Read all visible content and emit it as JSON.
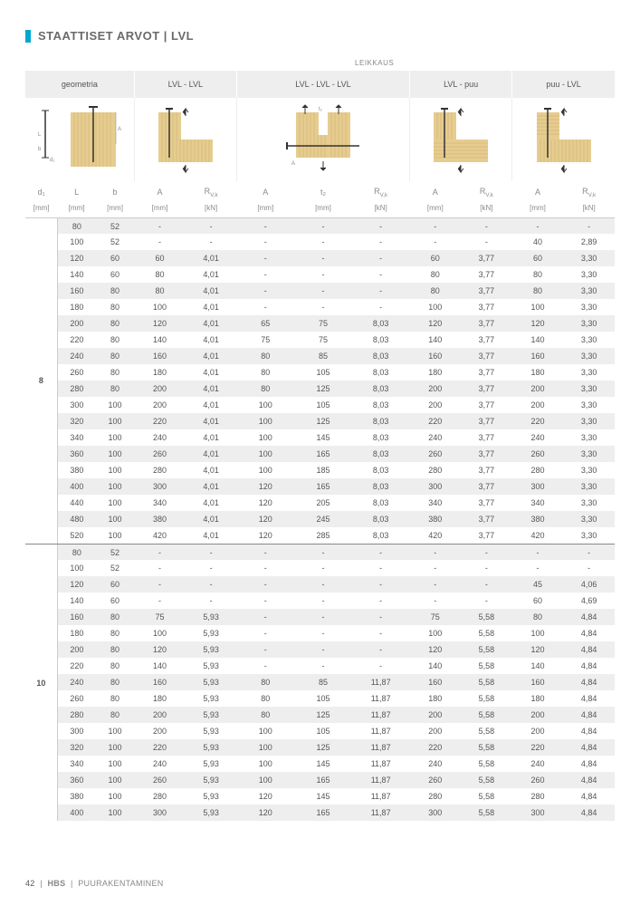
{
  "page_title": "STAATTISET ARVOT | LVL",
  "section_label_top_right": "LEIKKAUS",
  "footer": {
    "page": "42",
    "brand": "HBS",
    "text": "PUURAKENTAMINEN"
  },
  "column_groups": [
    {
      "label": "geometria",
      "span": 3
    },
    {
      "label": "LVL - LVL",
      "span": 2
    },
    {
      "label": "LVL - LVL - LVL",
      "span": 3
    },
    {
      "label": "LVL - puu",
      "span": 2
    },
    {
      "label": "puu - LVL",
      "span": 2
    }
  ],
  "header_labels": [
    "d₁",
    "L",
    "b",
    "A",
    "R_{V,k}",
    "A",
    "t₂",
    "R_{V,k}",
    "A",
    "R_{V,k}",
    "A",
    "R_{V,k}"
  ],
  "header_units": [
    "[mm]",
    "[mm]",
    "[mm]",
    "[mm]",
    "[kN]",
    "[mm]",
    "[mm]",
    "[kN]",
    "[mm]",
    "[kN]",
    "[mm]",
    "[kN]"
  ],
  "col_widths_pct": [
    5,
    6,
    6,
    8,
    8,
    9,
    9,
    9,
    8,
    8,
    8,
    8
  ],
  "colors": {
    "background": "#ffffff",
    "row_stripe": "#eeeeee",
    "header_bg": "#eeeeee",
    "border": "#cccccc",
    "text": "#555555",
    "muted_text": "#888888",
    "accent": "#00a7cf",
    "wood_fill": "#e6cc8f",
    "wood_line": "#c9ad6b"
  },
  "diagram_labels": {
    "L": "L",
    "b": "b",
    "d1": "d₁",
    "A": "A",
    "t2": "t₂"
  },
  "groups": [
    {
      "d1": "8",
      "rows": [
        {
          "L": "80",
          "b": "52",
          "c": [
            "-",
            "-",
            "-",
            "-",
            "-",
            "-",
            "-",
            "-",
            "-"
          ]
        },
        {
          "L": "100",
          "b": "52",
          "c": [
            "-",
            "-",
            "-",
            "-",
            "-",
            "-",
            "-",
            "40",
            "2,89"
          ]
        },
        {
          "L": "120",
          "b": "60",
          "c": [
            "60",
            "4,01",
            "-",
            "-",
            "-",
            "60",
            "3,77",
            "60",
            "3,30"
          ]
        },
        {
          "L": "140",
          "b": "60",
          "c": [
            "80",
            "4,01",
            "-",
            "-",
            "-",
            "80",
            "3,77",
            "80",
            "3,30"
          ]
        },
        {
          "L": "160",
          "b": "80",
          "c": [
            "80",
            "4,01",
            "-",
            "-",
            "-",
            "80",
            "3,77",
            "80",
            "3,30"
          ]
        },
        {
          "L": "180",
          "b": "80",
          "c": [
            "100",
            "4,01",
            "-",
            "-",
            "-",
            "100",
            "3,77",
            "100",
            "3,30"
          ]
        },
        {
          "L": "200",
          "b": "80",
          "c": [
            "120",
            "4,01",
            "65",
            "75",
            "8,03",
            "120",
            "3,77",
            "120",
            "3,30"
          ]
        },
        {
          "L": "220",
          "b": "80",
          "c": [
            "140",
            "4,01",
            "75",
            "75",
            "8,03",
            "140",
            "3,77",
            "140",
            "3,30"
          ]
        },
        {
          "L": "240",
          "b": "80",
          "c": [
            "160",
            "4,01",
            "80",
            "85",
            "8,03",
            "160",
            "3,77",
            "160",
            "3,30"
          ]
        },
        {
          "L": "260",
          "b": "80",
          "c": [
            "180",
            "4,01",
            "80",
            "105",
            "8,03",
            "180",
            "3,77",
            "180",
            "3,30"
          ]
        },
        {
          "L": "280",
          "b": "80",
          "c": [
            "200",
            "4,01",
            "80",
            "125",
            "8,03",
            "200",
            "3,77",
            "200",
            "3,30"
          ]
        },
        {
          "L": "300",
          "b": "100",
          "c": [
            "200",
            "4,01",
            "100",
            "105",
            "8,03",
            "200",
            "3,77",
            "200",
            "3,30"
          ]
        },
        {
          "L": "320",
          "b": "100",
          "c": [
            "220",
            "4,01",
            "100",
            "125",
            "8,03",
            "220",
            "3,77",
            "220",
            "3,30"
          ]
        },
        {
          "L": "340",
          "b": "100",
          "c": [
            "240",
            "4,01",
            "100",
            "145",
            "8,03",
            "240",
            "3,77",
            "240",
            "3,30"
          ]
        },
        {
          "L": "360",
          "b": "100",
          "c": [
            "260",
            "4,01",
            "100",
            "165",
            "8,03",
            "260",
            "3,77",
            "260",
            "3,30"
          ]
        },
        {
          "L": "380",
          "b": "100",
          "c": [
            "280",
            "4,01",
            "100",
            "185",
            "8,03",
            "280",
            "3,77",
            "280",
            "3,30"
          ]
        },
        {
          "L": "400",
          "b": "100",
          "c": [
            "300",
            "4,01",
            "120",
            "165",
            "8,03",
            "300",
            "3,77",
            "300",
            "3,30"
          ]
        },
        {
          "L": "440",
          "b": "100",
          "c": [
            "340",
            "4,01",
            "120",
            "205",
            "8,03",
            "340",
            "3,77",
            "340",
            "3,30"
          ]
        },
        {
          "L": "480",
          "b": "100",
          "c": [
            "380",
            "4,01",
            "120",
            "245",
            "8,03",
            "380",
            "3,77",
            "380",
            "3,30"
          ]
        },
        {
          "L": "520",
          "b": "100",
          "c": [
            "420",
            "4,01",
            "120",
            "285",
            "8,03",
            "420",
            "3,77",
            "420",
            "3,30"
          ]
        }
      ]
    },
    {
      "d1": "10",
      "rows": [
        {
          "L": "80",
          "b": "52",
          "c": [
            "-",
            "-",
            "-",
            "-",
            "-",
            "-",
            "-",
            "-",
            "-"
          ]
        },
        {
          "L": "100",
          "b": "52",
          "c": [
            "-",
            "-",
            "-",
            "-",
            "-",
            "-",
            "-",
            "-",
            "-"
          ]
        },
        {
          "L": "120",
          "b": "60",
          "c": [
            "-",
            "-",
            "-",
            "-",
            "-",
            "-",
            "-",
            "45",
            "4,06"
          ]
        },
        {
          "L": "140",
          "b": "60",
          "c": [
            "-",
            "-",
            "-",
            "-",
            "-",
            "-",
            "-",
            "60",
            "4,69"
          ]
        },
        {
          "L": "160",
          "b": "80",
          "c": [
            "75",
            "5,93",
            "-",
            "-",
            "-",
            "75",
            "5,58",
            "80",
            "4,84"
          ]
        },
        {
          "L": "180",
          "b": "80",
          "c": [
            "100",
            "5,93",
            "-",
            "-",
            "-",
            "100",
            "5,58",
            "100",
            "4,84"
          ]
        },
        {
          "L": "200",
          "b": "80",
          "c": [
            "120",
            "5,93",
            "-",
            "-",
            "-",
            "120",
            "5,58",
            "120",
            "4,84"
          ]
        },
        {
          "L": "220",
          "b": "80",
          "c": [
            "140",
            "5,93",
            "-",
            "-",
            "-",
            "140",
            "5,58",
            "140",
            "4,84"
          ]
        },
        {
          "L": "240",
          "b": "80",
          "c": [
            "160",
            "5,93",
            "80",
            "85",
            "11,87",
            "160",
            "5,58",
            "160",
            "4,84"
          ]
        },
        {
          "L": "260",
          "b": "80",
          "c": [
            "180",
            "5,93",
            "80",
            "105",
            "11,87",
            "180",
            "5,58",
            "180",
            "4,84"
          ]
        },
        {
          "L": "280",
          "b": "80",
          "c": [
            "200",
            "5,93",
            "80",
            "125",
            "11,87",
            "200",
            "5,58",
            "200",
            "4,84"
          ]
        },
        {
          "L": "300",
          "b": "100",
          "c": [
            "200",
            "5,93",
            "100",
            "105",
            "11,87",
            "200",
            "5,58",
            "200",
            "4,84"
          ]
        },
        {
          "L": "320",
          "b": "100",
          "c": [
            "220",
            "5,93",
            "100",
            "125",
            "11,87",
            "220",
            "5,58",
            "220",
            "4,84"
          ]
        },
        {
          "L": "340",
          "b": "100",
          "c": [
            "240",
            "5,93",
            "100",
            "145",
            "11,87",
            "240",
            "5,58",
            "240",
            "4,84"
          ]
        },
        {
          "L": "360",
          "b": "100",
          "c": [
            "260",
            "5,93",
            "100",
            "165",
            "11,87",
            "260",
            "5,58",
            "260",
            "4,84"
          ]
        },
        {
          "L": "380",
          "b": "100",
          "c": [
            "280",
            "5,93",
            "120",
            "145",
            "11,87",
            "280",
            "5,58",
            "280",
            "4,84"
          ]
        },
        {
          "L": "400",
          "b": "100",
          "c": [
            "300",
            "5,93",
            "120",
            "165",
            "11,87",
            "300",
            "5,58",
            "300",
            "4,84"
          ]
        }
      ]
    }
  ]
}
